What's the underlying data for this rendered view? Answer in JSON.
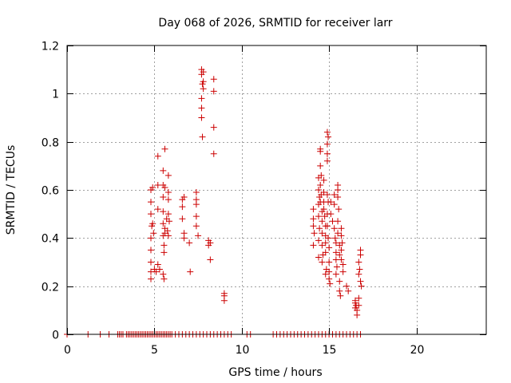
{
  "chart_data": {
    "type": "scatter",
    "title": "Day 068 of 2026, SRMTID for receiver larr",
    "xlabel": "GPS time / hours",
    "ylabel": "SRMTID / TECUs",
    "xlim": [
      0,
      24
    ],
    "ylim": [
      0,
      1.2
    ],
    "grid": true,
    "marker": "plus",
    "color": "#cc0000",
    "xticks": [
      0,
      5,
      10,
      15,
      20
    ],
    "xtick_labels": [
      "0",
      "5",
      "10",
      "15",
      "20"
    ],
    "yticks": [
      0,
      0.2,
      0.4,
      0.6,
      0.8,
      1.0,
      1.2
    ],
    "ytick_labels": [
      "0",
      "0.2",
      "0.4",
      "0.6",
      "0.8",
      "1",
      "1.2"
    ],
    "series": [
      {
        "name": "SRMTID",
        "points": [
          [
            0.0,
            0
          ],
          [
            1.2,
            0
          ],
          [
            1.9,
            0
          ],
          [
            2.4,
            0
          ],
          [
            2.9,
            0
          ],
          [
            3.0,
            0
          ],
          [
            3.1,
            0
          ],
          [
            3.2,
            0
          ],
          [
            3.4,
            0
          ],
          [
            3.5,
            0
          ],
          [
            3.6,
            0
          ],
          [
            3.7,
            0
          ],
          [
            3.8,
            0
          ],
          [
            3.9,
            0
          ],
          [
            4.0,
            0
          ],
          [
            4.1,
            0
          ],
          [
            4.2,
            0
          ],
          [
            4.3,
            0
          ],
          [
            4.4,
            0
          ],
          [
            4.5,
            0
          ],
          [
            4.6,
            0
          ],
          [
            4.7,
            0
          ],
          [
            4.8,
            0.6
          ],
          [
            4.8,
            0.55
          ],
          [
            4.8,
            0.5
          ],
          [
            4.85,
            0.45
          ],
          [
            4.8,
            0.4
          ],
          [
            4.8,
            0.35
          ],
          [
            4.8,
            0.3
          ],
          [
            4.8,
            0.26
          ],
          [
            4.8,
            0.23
          ],
          [
            4.9,
            0.61
          ],
          [
            4.9,
            0.46
          ],
          [
            4.95,
            0.42
          ],
          [
            5.0,
            0.27
          ],
          [
            5.1,
            0.26
          ],
          [
            5.2,
            0.74
          ],
          [
            5.2,
            0.62
          ],
          [
            5.2,
            0.52
          ],
          [
            5.2,
            0.29
          ],
          [
            5.3,
            0.27
          ],
          [
            5.5,
            0.68
          ],
          [
            5.5,
            0.62
          ],
          [
            5.5,
            0.57
          ],
          [
            5.5,
            0.51
          ],
          [
            5.5,
            0.46
          ],
          [
            5.5,
            0.41
          ],
          [
            5.55,
            0.37
          ],
          [
            5.55,
            0.34
          ],
          [
            5.5,
            0.25
          ],
          [
            5.55,
            0.23
          ],
          [
            5.6,
            0.77
          ],
          [
            5.6,
            0.61
          ],
          [
            5.6,
            0.44
          ],
          [
            5.6,
            0.42
          ],
          [
            5.7,
            0.48
          ],
          [
            5.75,
            0.43
          ],
          [
            5.8,
            0.66
          ],
          [
            5.8,
            0.59
          ],
          [
            5.8,
            0.56
          ],
          [
            5.8,
            0.5
          ],
          [
            5.85,
            0.47
          ],
          [
            5.8,
            0.41
          ],
          [
            6.6,
            0.56
          ],
          [
            6.6,
            0.53
          ],
          [
            6.6,
            0.48
          ],
          [
            6.7,
            0.42
          ],
          [
            6.7,
            0.4
          ],
          [
            6.7,
            0.57
          ],
          [
            7.0,
            0.38
          ],
          [
            7.05,
            0.26
          ],
          [
            7.4,
            0.59
          ],
          [
            7.4,
            0.56
          ],
          [
            7.4,
            0.54
          ],
          [
            7.4,
            0.49
          ],
          [
            7.4,
            0.45
          ],
          [
            7.5,
            0.41
          ],
          [
            7.7,
            1.1
          ],
          [
            7.7,
            1.08
          ],
          [
            7.75,
            1.04
          ],
          [
            7.7,
            0.98
          ],
          [
            7.7,
            0.94
          ],
          [
            7.7,
            0.9
          ],
          [
            7.8,
            1.09
          ],
          [
            7.8,
            1.05
          ],
          [
            7.8,
            1.02
          ],
          [
            7.75,
            0.82
          ],
          [
            8.1,
            0.39
          ],
          [
            8.1,
            0.37
          ],
          [
            8.2,
            0.38
          ],
          [
            8.2,
            0.31
          ],
          [
            8.4,
            1.06
          ],
          [
            8.4,
            1.01
          ],
          [
            8.4,
            0.86
          ],
          [
            8.4,
            0.75
          ],
          [
            9.0,
            0.17
          ],
          [
            9.0,
            0.16
          ],
          [
            9.0,
            0.14
          ],
          [
            4.8,
            0
          ],
          [
            4.9,
            0
          ],
          [
            5.0,
            0
          ],
          [
            5.1,
            0
          ],
          [
            5.2,
            0
          ],
          [
            5.3,
            0
          ],
          [
            5.4,
            0
          ],
          [
            5.5,
            0
          ],
          [
            5.6,
            0
          ],
          [
            5.7,
            0
          ],
          [
            5.8,
            0
          ],
          [
            5.9,
            0
          ],
          [
            6.0,
            0
          ],
          [
            6.2,
            0
          ],
          [
            6.4,
            0
          ],
          [
            6.6,
            0
          ],
          [
            6.8,
            0
          ],
          [
            7.0,
            0
          ],
          [
            7.2,
            0
          ],
          [
            7.4,
            0
          ],
          [
            7.6,
            0
          ],
          [
            7.8,
            0
          ],
          [
            8.0,
            0
          ],
          [
            8.2,
            0
          ],
          [
            8.4,
            0
          ],
          [
            8.6,
            0
          ],
          [
            8.8,
            0
          ],
          [
            9.0,
            0
          ],
          [
            9.2,
            0
          ],
          [
            9.4,
            0
          ],
          [
            10.3,
            0
          ],
          [
            10.5,
            0
          ],
          [
            11.8,
            0
          ],
          [
            12.0,
            0
          ],
          [
            12.2,
            0
          ],
          [
            12.4,
            0
          ],
          [
            12.6,
            0
          ],
          [
            12.8,
            0
          ],
          [
            13.0,
            0
          ],
          [
            13.2,
            0
          ],
          [
            13.4,
            0
          ],
          [
            13.6,
            0
          ],
          [
            13.8,
            0
          ],
          [
            14.0,
            0
          ],
          [
            14.2,
            0
          ],
          [
            14.4,
            0
          ],
          [
            14.6,
            0
          ],
          [
            14.8,
            0
          ],
          [
            15.0,
            0
          ],
          [
            15.2,
            0
          ],
          [
            15.4,
            0
          ],
          [
            15.6,
            0
          ],
          [
            15.8,
            0
          ],
          [
            16.0,
            0
          ],
          [
            16.2,
            0
          ],
          [
            16.4,
            0
          ],
          [
            16.6,
            0
          ],
          [
            16.8,
            0
          ],
          [
            14.1,
            0.52
          ],
          [
            14.1,
            0.48
          ],
          [
            14.1,
            0.45
          ],
          [
            14.15,
            0.42
          ],
          [
            14.1,
            0.37
          ],
          [
            14.4,
            0.65
          ],
          [
            14.4,
            0.6
          ],
          [
            14.45,
            0.57
          ],
          [
            14.4,
            0.54
          ],
          [
            14.4,
            0.49
          ],
          [
            14.45,
            0.44
          ],
          [
            14.4,
            0.39
          ],
          [
            14.4,
            0.32
          ],
          [
            14.5,
            0.77
          ],
          [
            14.5,
            0.76
          ],
          [
            14.5,
            0.7
          ],
          [
            14.55,
            0.66
          ],
          [
            14.5,
            0.62
          ],
          [
            14.55,
            0.58
          ],
          [
            14.5,
            0.55
          ],
          [
            14.6,
            0.51
          ],
          [
            14.6,
            0.47
          ],
          [
            14.6,
            0.42
          ],
          [
            14.6,
            0.37
          ],
          [
            14.65,
            0.33
          ],
          [
            14.6,
            0.3
          ],
          [
            14.7,
            0.64
          ],
          [
            14.7,
            0.59
          ],
          [
            14.7,
            0.55
          ],
          [
            14.7,
            0.52
          ],
          [
            14.75,
            0.49
          ],
          [
            14.8,
            0.45
          ],
          [
            14.8,
            0.41
          ],
          [
            14.8,
            0.38
          ],
          [
            14.8,
            0.34
          ],
          [
            14.85,
            0.27
          ],
          [
            14.8,
            0.25
          ],
          [
            14.9,
            0.75
          ],
          [
            14.9,
            0.72
          ],
          [
            14.9,
            0.84
          ],
          [
            14.95,
            0.82
          ],
          [
            14.9,
            0.79
          ],
          [
            14.9,
            0.58
          ],
          [
            14.95,
            0.55
          ],
          [
            14.9,
            0.5
          ],
          [
            14.9,
            0.45
          ],
          [
            14.95,
            0.4
          ],
          [
            15.0,
            0.36
          ],
          [
            15.0,
            0.3
          ],
          [
            15.0,
            0.26
          ],
          [
            15.0,
            0.23
          ],
          [
            15.05,
            0.21
          ],
          [
            15.1,
            0.55
          ],
          [
            15.1,
            0.5
          ],
          [
            15.2,
            0.47
          ],
          [
            15.3,
            0.58
          ],
          [
            15.3,
            0.54
          ],
          [
            15.3,
            0.44
          ],
          [
            15.35,
            0.4
          ],
          [
            15.4,
            0.38
          ],
          [
            15.4,
            0.34
          ],
          [
            15.4,
            0.31
          ],
          [
            15.45,
            0.28
          ],
          [
            15.4,
            0.25
          ],
          [
            15.5,
            0.62
          ],
          [
            15.5,
            0.6
          ],
          [
            15.5,
            0.57
          ],
          [
            15.55,
            0.52
          ],
          [
            15.5,
            0.47
          ],
          [
            15.5,
            0.42
          ],
          [
            15.6,
            0.37
          ],
          [
            15.6,
            0.33
          ],
          [
            15.6,
            0.22
          ],
          [
            15.6,
            0.18
          ],
          [
            15.65,
            0.16
          ],
          [
            15.7,
            0.44
          ],
          [
            15.7,
            0.41
          ],
          [
            15.75,
            0.38
          ],
          [
            15.7,
            0.35
          ],
          [
            15.7,
            0.31
          ],
          [
            15.8,
            0.29
          ],
          [
            15.8,
            0.26
          ],
          [
            16.0,
            0.2
          ],
          [
            16.1,
            0.18
          ],
          [
            16.5,
            0.14
          ],
          [
            16.5,
            0.13
          ],
          [
            16.55,
            0.12
          ],
          [
            16.5,
            0.11
          ],
          [
            16.6,
            0.1
          ],
          [
            16.6,
            0.08
          ],
          [
            16.7,
            0.15
          ],
          [
            16.7,
            0.12
          ],
          [
            16.7,
            0.3
          ],
          [
            16.75,
            0.27
          ],
          [
            16.7,
            0.25
          ],
          [
            16.8,
            0.35
          ],
          [
            16.8,
            0.33
          ],
          [
            16.8,
            0.22
          ],
          [
            16.85,
            0.2
          ]
        ]
      }
    ]
  }
}
